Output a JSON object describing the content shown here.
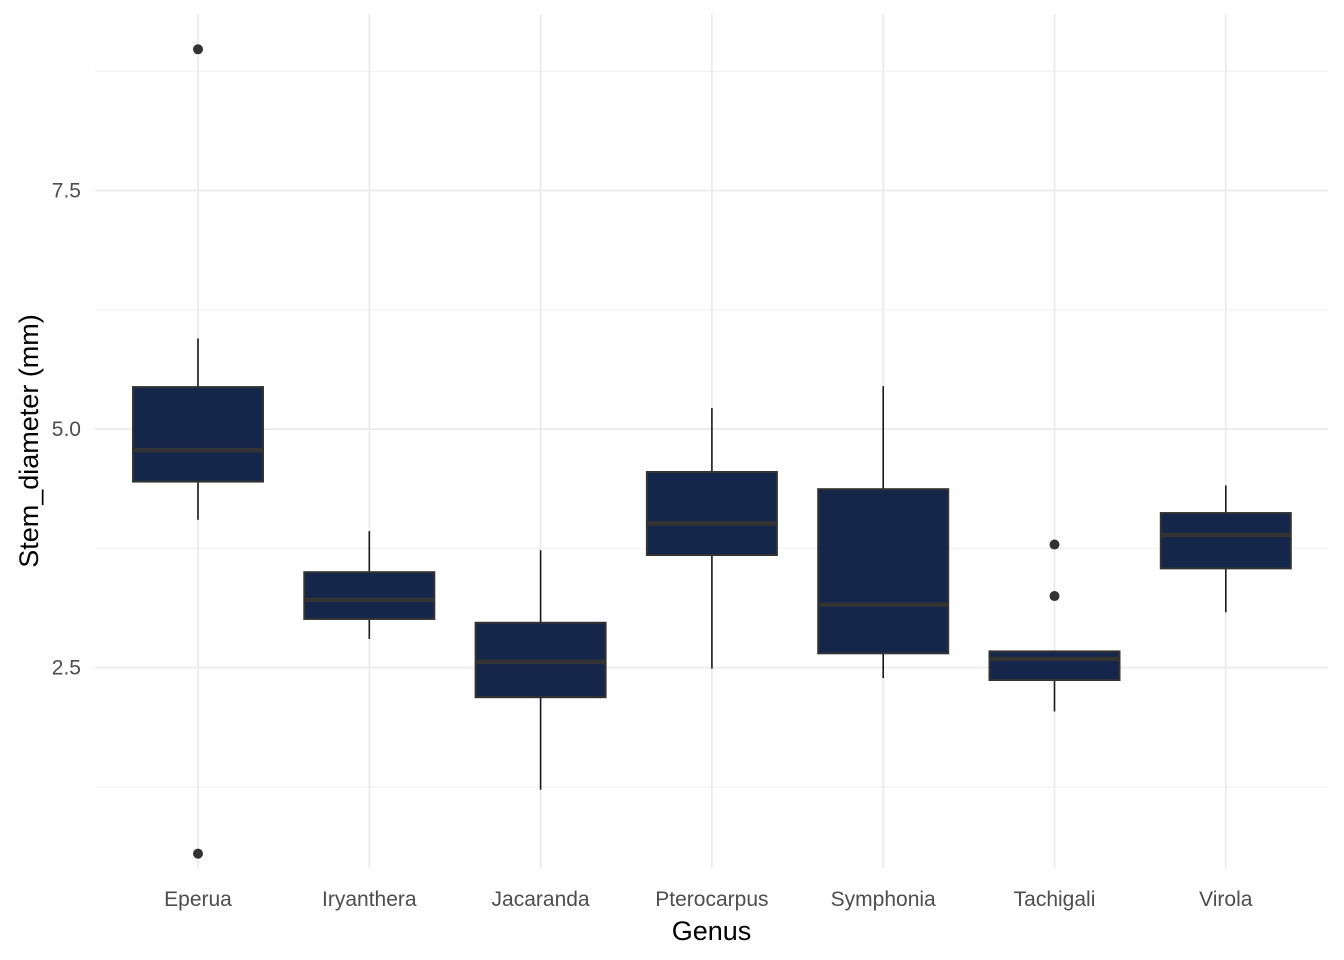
{
  "chart_data": {
    "type": "boxplot",
    "xlabel": "Genus",
    "ylabel": "Stem_diameter (mm)",
    "categories": [
      "Eperua",
      "Iryanthera",
      "Jacaranda",
      "Pterocarpus",
      "Symphonia",
      "Tachigali",
      "Virola"
    ],
    "y_ticks": [
      2.5,
      5.0,
      7.5
    ],
    "y_tick_labels": [
      "2.5",
      "5.0",
      "7.5"
    ],
    "ylim": [
      0.4,
      9.35
    ],
    "grid": true,
    "boxes": [
      {
        "category": "Eperua",
        "whisker_low": 4.05,
        "q1": 4.45,
        "median": 4.78,
        "q3": 5.44,
        "whisker_high": 5.95,
        "outliers": [
          8.98,
          0.55
        ]
      },
      {
        "category": "Iryanthera",
        "whisker_low": 2.8,
        "q1": 3.01,
        "median": 3.21,
        "q3": 3.5,
        "whisker_high": 3.93,
        "outliers": []
      },
      {
        "category": "Jacaranda",
        "whisker_low": 1.22,
        "q1": 2.19,
        "median": 2.56,
        "q3": 2.97,
        "whisker_high": 3.73,
        "outliers": []
      },
      {
        "category": "Pterocarpus",
        "whisker_low": 2.49,
        "q1": 3.68,
        "median": 4.01,
        "q3": 4.55,
        "whisker_high": 5.22,
        "outliers": []
      },
      {
        "category": "Symphonia",
        "whisker_low": 2.39,
        "q1": 2.65,
        "median": 3.16,
        "q3": 4.37,
        "whisker_high": 5.45,
        "outliers": []
      },
      {
        "category": "Tachigali",
        "whisker_low": 2.04,
        "q1": 2.37,
        "median": 2.59,
        "q3": 2.67,
        "whisker_high": 2.67,
        "outliers": [
          3.25,
          3.79
        ]
      },
      {
        "category": "Virola",
        "whisker_low": 3.08,
        "q1": 3.54,
        "median": 3.89,
        "q3": 4.12,
        "whisker_high": 4.41,
        "outliers": []
      }
    ],
    "colors": {
      "box_fill": "#14264a",
      "box_border": "#333333",
      "median": "#333333",
      "whisker": "#1a1a1a",
      "outlier": "#333333",
      "grid_major": "#ebebeb",
      "grid_minor": "#f2f2f2"
    }
  }
}
